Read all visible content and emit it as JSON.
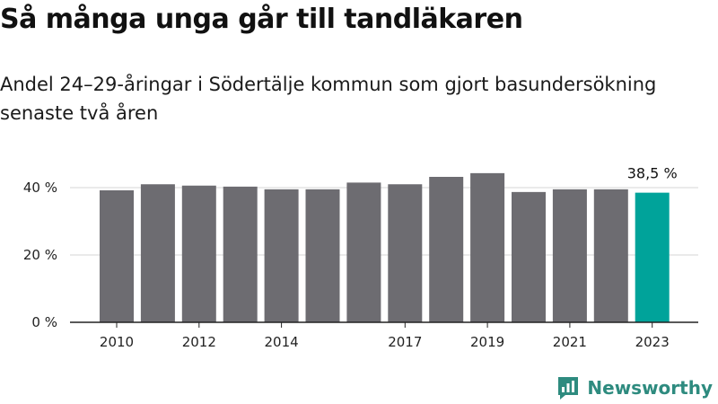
{
  "title": "Så många unga går till tandläkaren",
  "subtitle": "Andel 24–29-åringar i Södertälje kommun som gjort basundersökning senaste två åren",
  "brand": "Newsworthy",
  "colors": {
    "bar": "#6d6c71",
    "highlight": "#00a39a",
    "grid": "#d6d6d6",
    "axis": "#222222"
  },
  "chart_data": {
    "type": "bar",
    "title": "Så många unga går till tandläkaren",
    "xlabel": "",
    "ylabel": "",
    "categories": [
      "2010",
      "2011",
      "2012",
      "2013",
      "2014",
      "2015",
      "2016",
      "2017",
      "2018",
      "2019",
      "2020",
      "2021",
      "2022",
      "2023"
    ],
    "x_tick_labels": [
      "2010",
      "",
      "2012",
      "",
      "2014",
      "",
      "",
      "2017",
      "",
      "2019",
      "",
      "2021",
      "",
      "2023"
    ],
    "values": [
      39.2,
      41.0,
      40.6,
      40.3,
      39.5,
      39.5,
      41.5,
      41.0,
      43.2,
      44.3,
      38.7,
      39.5,
      39.5,
      38.5
    ],
    "highlight_index": 13,
    "highlight_label": "38,5 %",
    "yticks": [
      0,
      20,
      40
    ],
    "ytick_labels": [
      "0 %",
      "20 %",
      "40 %"
    ],
    "ylim": [
      0,
      45
    ],
    "grid": true
  }
}
